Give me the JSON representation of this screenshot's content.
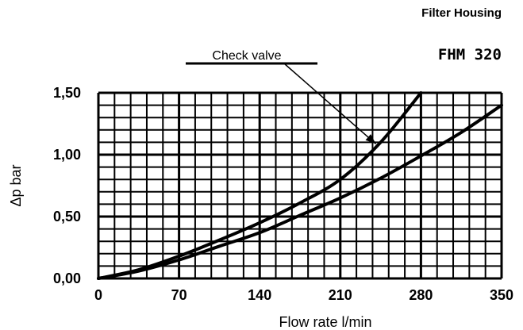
{
  "header": {
    "title": "Filter Housing",
    "subtitle": "FHM 320"
  },
  "chart_data": {
    "type": "line",
    "xlabel": "Flow rate l/min",
    "ylabel": "Δp bar",
    "xlim": [
      0,
      350
    ],
    "ylim": [
      0,
      1.5
    ],
    "x_ticks": [
      "0",
      "70",
      "140",
      "210",
      "280",
      "350"
    ],
    "y_ticks": [
      "0,00",
      "0,50",
      "1,00",
      "1,50"
    ],
    "grid": true,
    "minor_x_step": 14,
    "minor_y_step": 0.1,
    "series": [
      {
        "name": "Check valve",
        "x": [
          0,
          35,
          70,
          105,
          140,
          175,
          210,
          245,
          280
        ],
        "y": [
          0,
          0.07,
          0.18,
          0.31,
          0.45,
          0.61,
          0.8,
          1.1,
          1.5
        ]
      },
      {
        "x": [
          0,
          35,
          70,
          105,
          140,
          175,
          210,
          245,
          280,
          315,
          350
        ],
        "y": [
          0,
          0.06,
          0.15,
          0.26,
          0.37,
          0.51,
          0.65,
          0.81,
          0.99,
          1.18,
          1.4
        ]
      }
    ],
    "annotations": [
      {
        "text": "Check valve",
        "arrow_to_series": "Check valve",
        "arrow_to_x": 245
      }
    ]
  }
}
